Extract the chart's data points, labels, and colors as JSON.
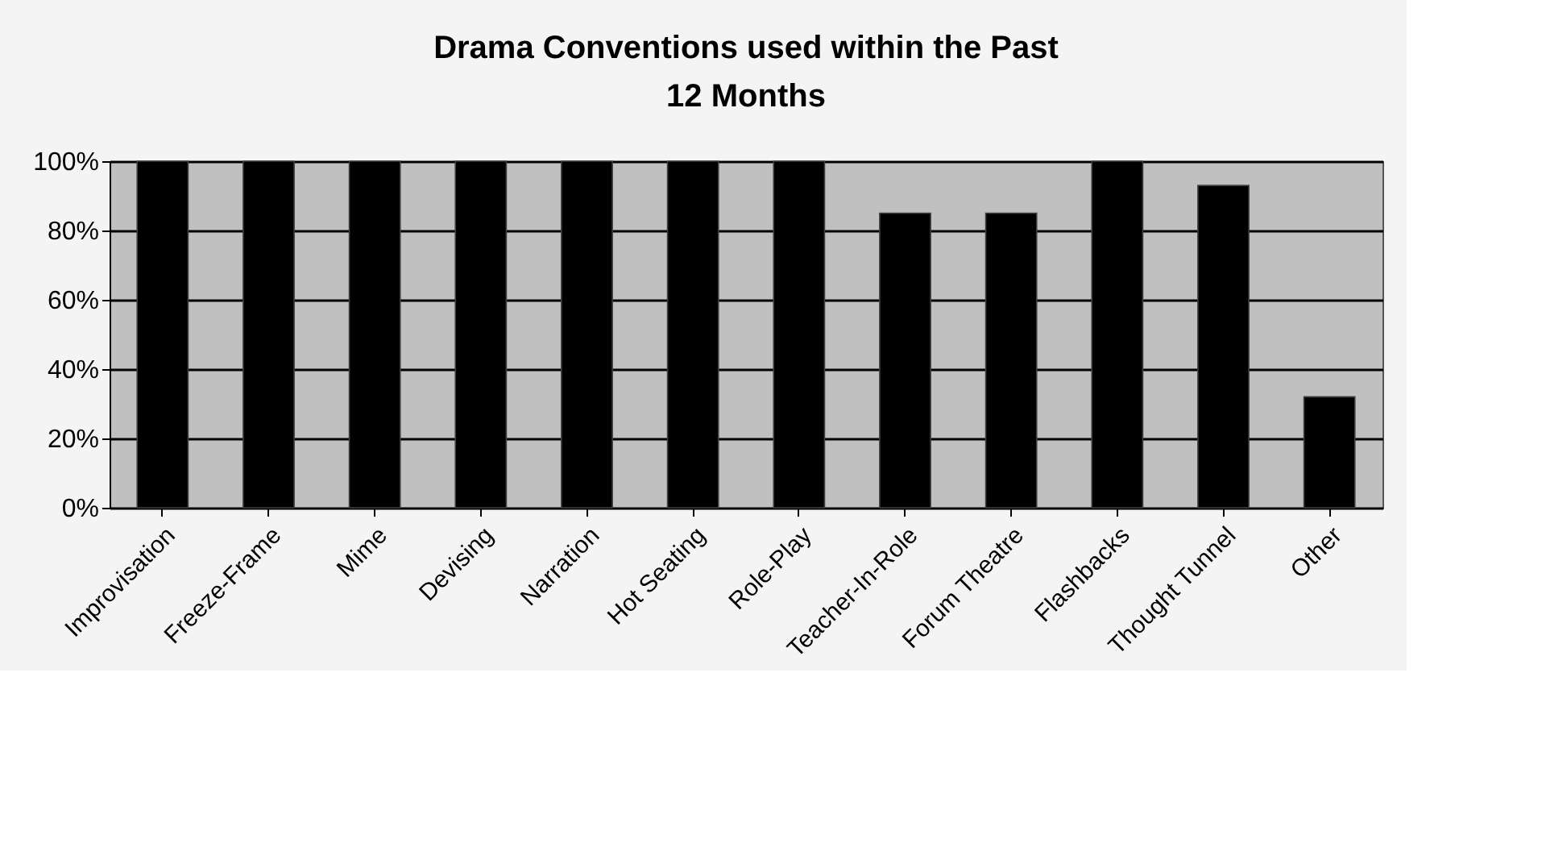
{
  "chart_data": {
    "type": "bar",
    "title": "Drama Conventions used within the Past 12 Months",
    "categories": [
      "Improvisation",
      "Freeze-Frame",
      "Mime",
      "Devising",
      "Narration",
      "Hot Seating",
      "Role-Play",
      "Teacher-In-Role",
      "Forum Theatre",
      "Flashbacks",
      "Thought Tunnel",
      "Other"
    ],
    "values": [
      100,
      100,
      100,
      100,
      100,
      100,
      100,
      85,
      85,
      100,
      93,
      32
    ],
    "color": "#000000",
    "ylim": [
      0,
      100
    ],
    "yticks": [
      {
        "value": 0,
        "label": "0%"
      },
      {
        "value": 20,
        "label": "20%"
      },
      {
        "value": 40,
        "label": "40%"
      },
      {
        "value": 60,
        "label": "60%"
      },
      {
        "value": 80,
        "label": "80%"
      },
      {
        "value": 100,
        "label": "100%"
      }
    ],
    "grid": "y"
  }
}
